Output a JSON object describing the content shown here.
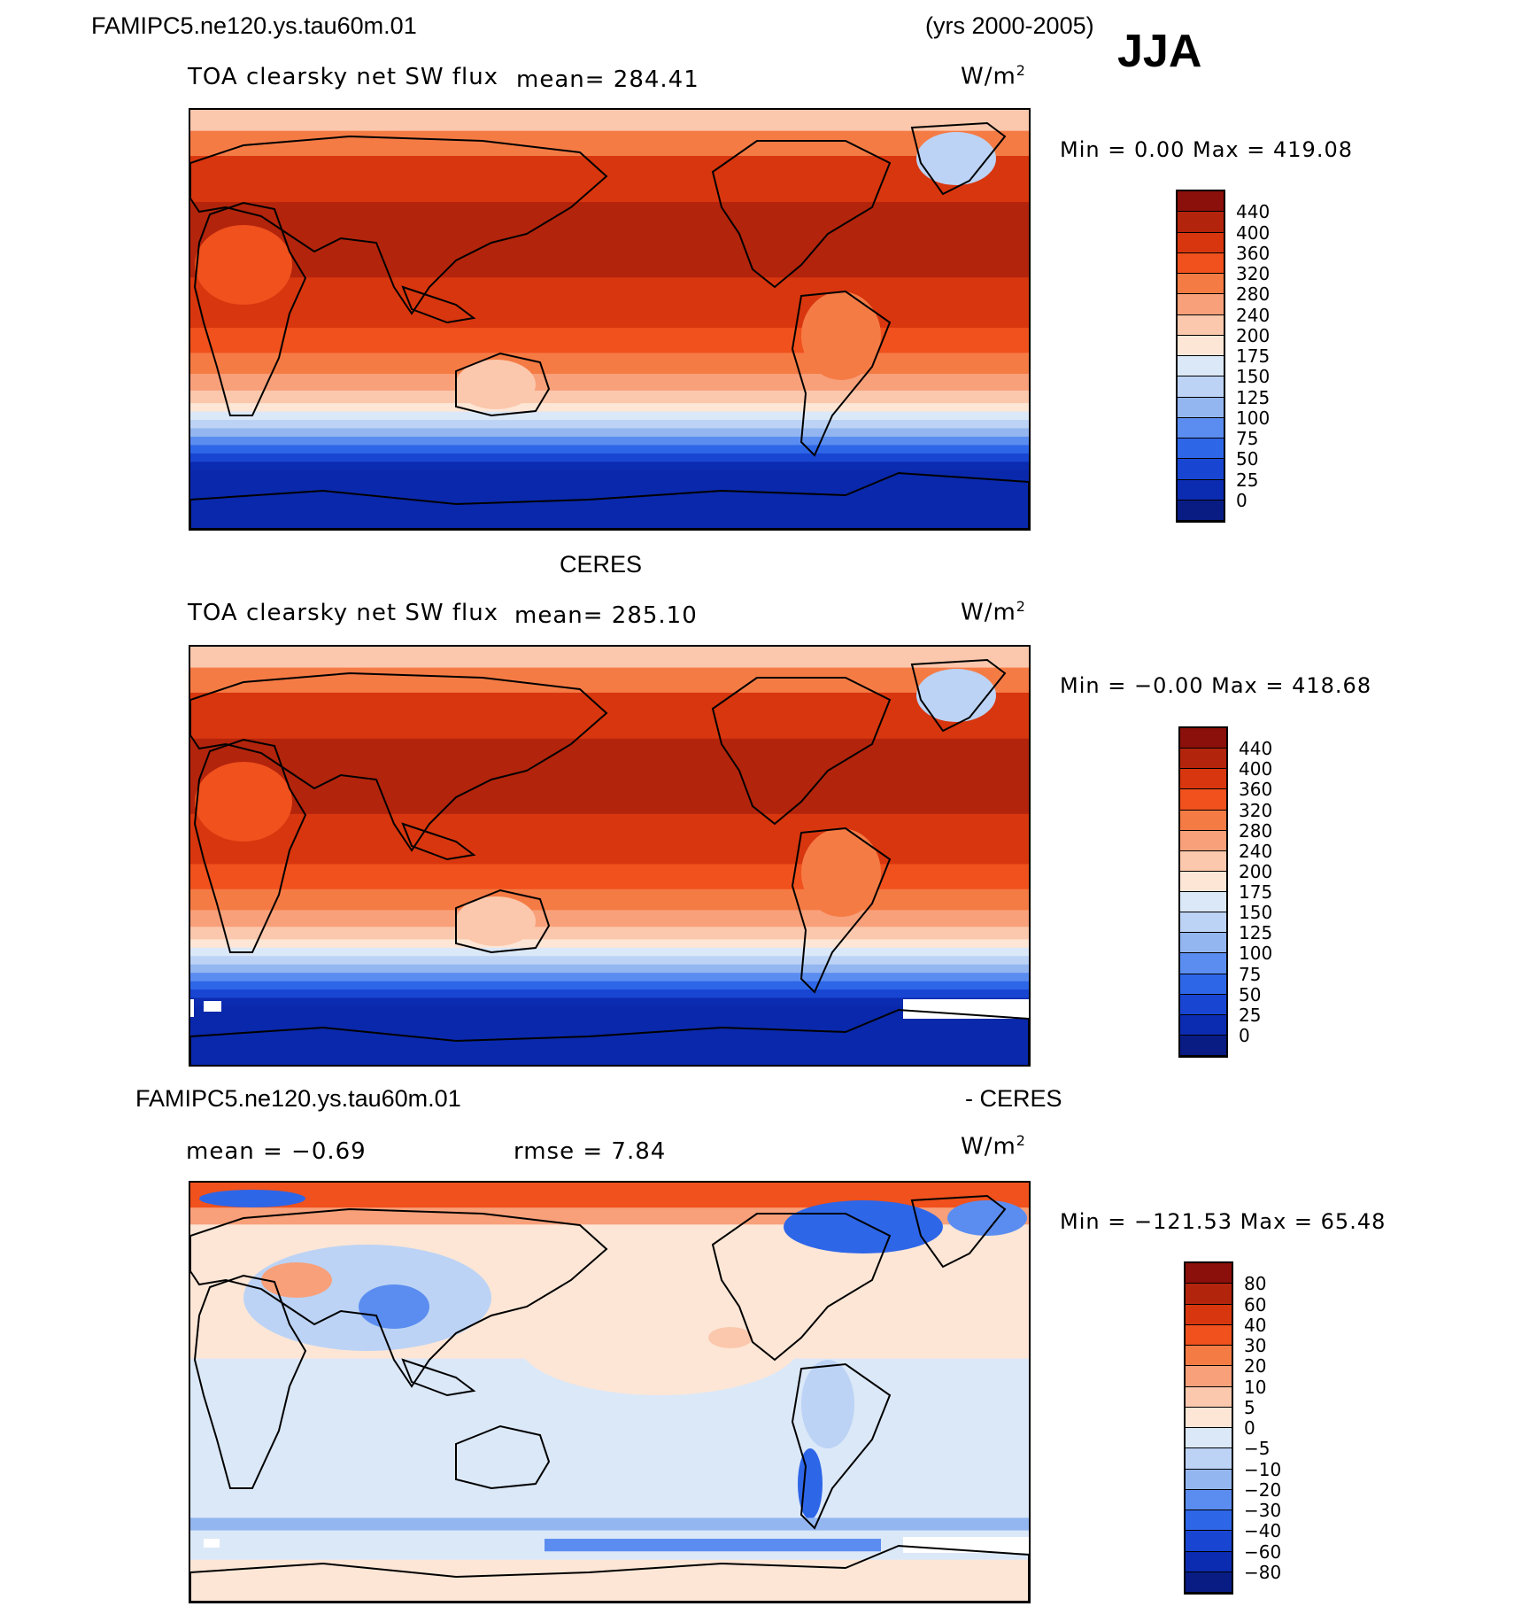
{
  "header": {
    "case_name": "FAMIPC5.ne120.ys.tau60m.01",
    "years": "(yrs 2000-2005)",
    "season": "JJA"
  },
  "panels": [
    {
      "id": "model",
      "title": "",
      "variable": "TOA clearsky net SW flux",
      "mean_text": "mean= 284.41",
      "units_base": "W/m",
      "units_exp": "2",
      "minmax_text": "Min =    0.00 Max = 419.08",
      "levels": [
        "440",
        "400",
        "360",
        "320",
        "280",
        "240",
        "200",
        "175",
        "150",
        "125",
        "100",
        "75",
        "50",
        "25",
        "0"
      ],
      "colors": [
        "#8b0f0a",
        "#b3240c",
        "#d8360e",
        "#f0511d",
        "#f57b45",
        "#f8a07a",
        "#fbc8ad",
        "#fde6d6",
        "#dbe8f8",
        "#bcd3f5",
        "#93b6f0",
        "#5b8df0",
        "#2e66e8",
        "#1846d2",
        "#0b2bb0",
        "#081c84"
      ],
      "chart_data": {
        "type": "heatmap",
        "title": "",
        "min": 0.0,
        "max": 419.08,
        "mean": 284.41,
        "units": "W/m2"
      }
    },
    {
      "id": "obs",
      "title": "CERES",
      "variable": "TOA clearsky net SW flux",
      "mean_text": "mean= 285.10",
      "units_base": "W/m",
      "units_exp": "2",
      "minmax_text": "Min =  −0.00 Max = 418.68",
      "levels": [
        "440",
        "400",
        "360",
        "320",
        "280",
        "240",
        "200",
        "175",
        "150",
        "125",
        "100",
        "75",
        "50",
        "25",
        "0"
      ],
      "colors": [
        "#8b0f0a",
        "#b3240c",
        "#d8360e",
        "#f0511d",
        "#f57b45",
        "#f8a07a",
        "#fbc8ad",
        "#fde6d6",
        "#dbe8f8",
        "#bcd3f5",
        "#93b6f0",
        "#5b8df0",
        "#2e66e8",
        "#1846d2",
        "#0b2bb0",
        "#081c84"
      ],
      "chart_data": {
        "type": "heatmap",
        "title": "CERES",
        "min": 0.0,
        "max": 418.68,
        "mean": 285.1,
        "units": "W/m2"
      }
    },
    {
      "id": "diff",
      "title_left": "FAMIPC5.ne120.ys.tau60m.01",
      "title_right": "- CERES",
      "mean_text": "mean =  −0.69",
      "rmse_text": "rmse =    7.84",
      "units_base": "W/m",
      "units_exp": "2",
      "minmax_text": "Min = −121.53 Max =   65.48",
      "levels": [
        "80",
        "60",
        "40",
        "30",
        "20",
        "10",
        "5",
        "0",
        "−5",
        "−10",
        "−20",
        "−30",
        "−40",
        "−60",
        "−80"
      ],
      "colors": [
        "#8b0f0a",
        "#b3240c",
        "#d8360e",
        "#f0511d",
        "#f57b45",
        "#f8a07a",
        "#fbc8ad",
        "#fde6d6",
        "#dbe8f8",
        "#bcd3f5",
        "#93b6f0",
        "#5b8df0",
        "#2e66e8",
        "#1846d2",
        "#0b2bb0",
        "#081c84"
      ],
      "chart_data": {
        "type": "heatmap",
        "title": "FAMIPC5.ne120.ys.tau60m.01 - CERES",
        "min": -121.53,
        "max": 65.48,
        "mean": -0.69,
        "rmse": 7.84,
        "units": "W/m2"
      }
    }
  ]
}
